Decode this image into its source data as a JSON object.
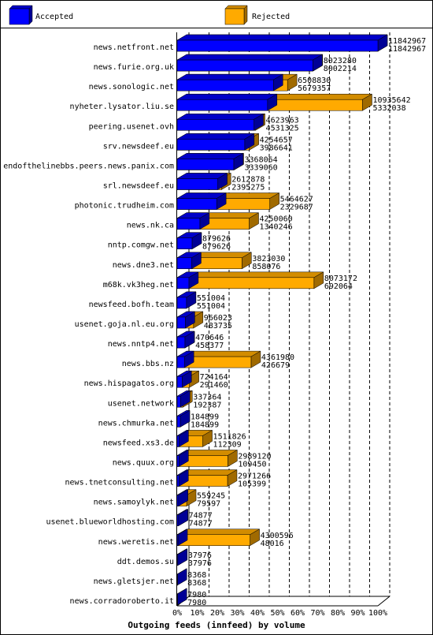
{
  "legend": {
    "accepted_label": "Accepted",
    "rejected_label": "Rejected"
  },
  "colors": {
    "accepted_front": "#0000ff",
    "accepted_top": "#0000c8",
    "accepted_side": "#000096",
    "rejected_front": "#ffaa00",
    "rejected_top": "#d28c00",
    "rejected_side": "#a06a00",
    "frame": "#000000",
    "grid": "#000000"
  },
  "chart_data": {
    "type": "bar",
    "orientation": "horizontal",
    "title": "Outgoing feeds (innfeed) by volume",
    "xlim": [
      0,
      100
    ],
    "x_ticks": [
      "0%",
      "10%",
      "20%",
      "30%",
      "40%",
      "50%",
      "60%",
      "70%",
      "80%",
      "90%",
      "100%"
    ],
    "x_tick_values": [
      0,
      10,
      20,
      30,
      40,
      50,
      60,
      70,
      80,
      90,
      100
    ],
    "scale_max": 11842967,
    "grid": "vertical dashed",
    "legend_position": "top",
    "categories": [
      "news.netfront.net",
      "news.furie.org.uk",
      "news.sonologic.net",
      "nyheter.lysator.liu.se",
      "peering.usenet.ovh",
      "srv.newsdeef.eu",
      "endofthelinebbs.peers.news.panix.com",
      "srl.newsdeef.eu",
      "photonic.trudheim.com",
      "news.nk.ca",
      "nntp.comgw.net",
      "news.dne3.net",
      "m68k.vk3heg.net",
      "newsfeed.bofh.team",
      "usenet.goja.nl.eu.org",
      "news.nntp4.net",
      "news.bbs.nz",
      "news.hispagatos.org",
      "usenet.network",
      "news.chmurka.net",
      "newsfeed.xs3.de",
      "news.quux.org",
      "news.tnetconsulting.net",
      "news.samoylyk.net",
      "usenet.blueworldhosting.com",
      "news.weretis.net",
      "ddt.demos.su",
      "news.gletsjer.net",
      "news.corradoroberto.it"
    ],
    "series": [
      {
        "name": "Rejected",
        "values": [
          11842967,
          8023280,
          6508830,
          10935642,
          4623963,
          4254657,
          3368064,
          2612878,
          5464627,
          4250060,
          879626,
          3823030,
          8073172,
          551004,
          966023,
          470646,
          4361980,
          724164,
          337364,
          184899,
          1511826,
          2989120,
          2971266,
          559245,
          74877,
          4300596,
          37976,
          8368,
          7980
        ]
      },
      {
        "name": "Accepted",
        "values": [
          11842967,
          8002214,
          5679357,
          5332038,
          4531325,
          3986641,
          3339060,
          2395275,
          2329687,
          1340246,
          879626,
          858076,
          692064,
          551004,
          483735,
          458377,
          426679,
          291460,
          192387,
          184899,
          112309,
          109450,
          105399,
          79597,
          74877,
          48016,
          37976,
          8368,
          7980
        ]
      }
    ]
  }
}
